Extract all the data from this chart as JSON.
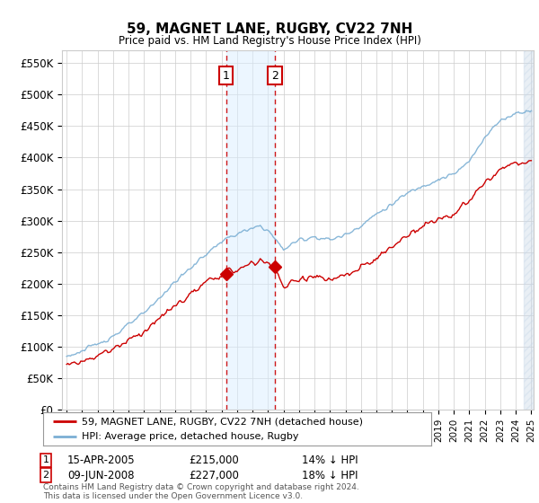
{
  "title": "59, MAGNET LANE, RUGBY, CV22 7NH",
  "subtitle": "Price paid vs. HM Land Registry's House Price Index (HPI)",
  "ylabel_ticks": [
    "£0",
    "£50K",
    "£100K",
    "£150K",
    "£200K",
    "£250K",
    "£300K",
    "£350K",
    "£400K",
    "£450K",
    "£500K",
    "£550K"
  ],
  "ytick_values": [
    0,
    50000,
    100000,
    150000,
    200000,
    250000,
    300000,
    350000,
    400000,
    450000,
    500000,
    550000
  ],
  "ylim": [
    0,
    570000
  ],
  "hpi_color": "#7bafd4",
  "price_color": "#cc0000",
  "marker1_date": 2005.29,
  "marker2_date": 2008.44,
  "marker1_price": 215000,
  "marker2_price": 227000,
  "legend1": "59, MAGNET LANE, RUGBY, CV22 7NH (detached house)",
  "legend2": "HPI: Average price, detached house, Rugby",
  "sale1_date": "15-APR-2005",
  "sale1_price": "£215,000",
  "sale1_hpi": "14% ↓ HPI",
  "sale2_date": "09-JUN-2008",
  "sale2_price": "£227,000",
  "sale2_hpi": "18% ↓ HPI",
  "footer": "Contains HM Land Registry data © Crown copyright and database right 2024.\nThis data is licensed under the Open Government Licence v3.0.",
  "bg_color": "#ffffff",
  "grid_color": "#cccccc",
  "shade_color": "#daeeff"
}
